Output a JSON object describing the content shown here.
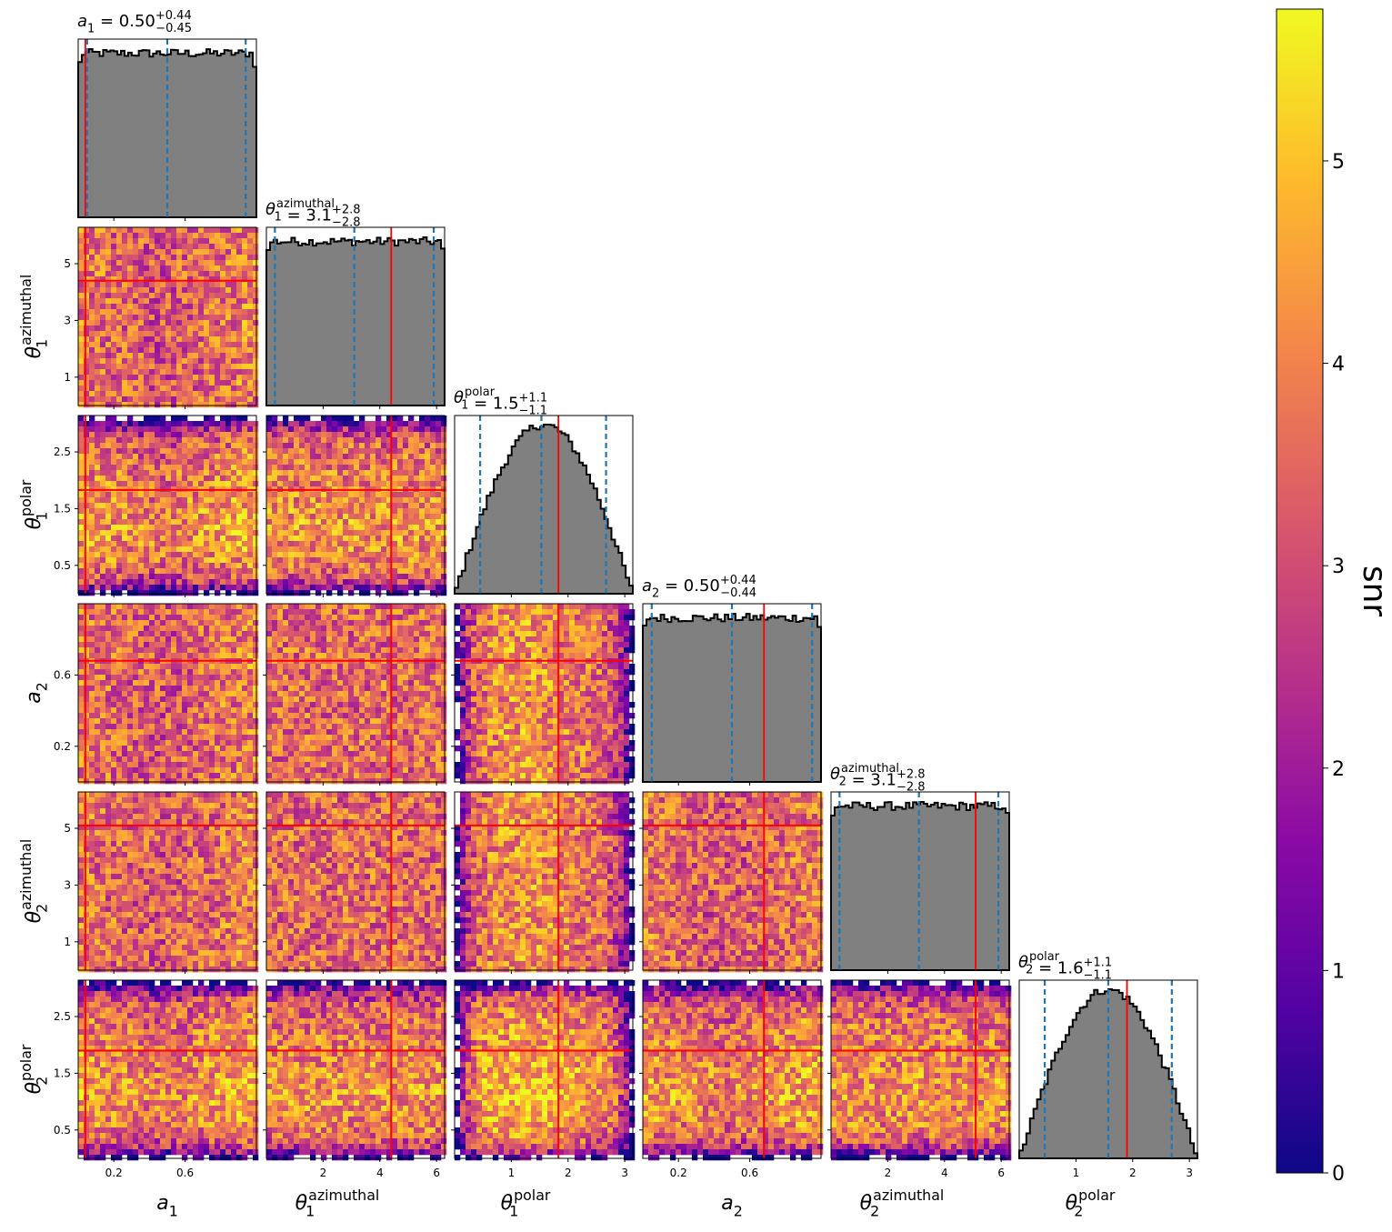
{
  "chart_data": {
    "type": "scatter",
    "subtype": "corner-plot",
    "parameters": [
      {
        "key": "a1",
        "sym": "a",
        "sub": "1",
        "sup": "",
        "range": [
          0.0,
          1.0
        ],
        "ticks": [
          0.2,
          0.6
        ],
        "tick_labels": [
          "0.2",
          "0.6"
        ],
        "truth": 0.04,
        "title": {
          "value": "0.50",
          "plus": "+0.44",
          "minus": "−0.45"
        },
        "quantiles": [
          0.05,
          0.5,
          0.94
        ],
        "hist_shape": "flat"
      },
      {
        "key": "th1az",
        "sym": "θ",
        "sub": "1",
        "sup": "azimuthal",
        "range": [
          0.0,
          6.283
        ],
        "ticks": [
          1,
          3,
          5
        ],
        "tick_labels": [
          "1",
          "3",
          "5"
        ],
        "x_ticks": [
          2,
          4,
          6
        ],
        "x_tick_labels": [
          "2",
          "4",
          "6"
        ],
        "truth": 4.4,
        "title": {
          "value": "3.1",
          "plus": "+2.8",
          "minus": "−2.8"
        },
        "quantiles": [
          0.3,
          3.1,
          5.9
        ],
        "hist_shape": "flat"
      },
      {
        "key": "th1pol",
        "sym": "θ",
        "sub": "1",
        "sup": "polar",
        "range": [
          0.0,
          3.1416
        ],
        "ticks": [
          0.5,
          1.5,
          2.5
        ],
        "tick_labels": [
          "0.5",
          "1.5",
          "2.5"
        ],
        "x_ticks": [
          1,
          2,
          3
        ],
        "x_tick_labels": [
          "1",
          "2",
          "3"
        ],
        "truth": 1.83,
        "title": {
          "value": "1.5",
          "plus": "+1.1",
          "minus": "−1.1"
        },
        "quantiles": [
          0.45,
          1.53,
          2.67
        ],
        "hist_shape": "sine"
      },
      {
        "key": "a2",
        "sym": "a",
        "sub": "2",
        "sup": "",
        "range": [
          0.0,
          1.0
        ],
        "ticks": [
          0.2,
          0.6
        ],
        "tick_labels": [
          "0.2",
          "0.6"
        ],
        "truth": 0.68,
        "title": {
          "value": "0.50",
          "plus": "+0.44",
          "minus": "−0.44"
        },
        "quantiles": [
          0.05,
          0.5,
          0.95
        ],
        "hist_shape": "flat"
      },
      {
        "key": "th2az",
        "sym": "θ",
        "sub": "2",
        "sup": "azimuthal",
        "range": [
          0.0,
          6.283
        ],
        "ticks": [
          1,
          3,
          5
        ],
        "tick_labels": [
          "1",
          "3",
          "5"
        ],
        "x_ticks": [
          2,
          4,
          6
        ],
        "x_tick_labels": [
          "2",
          "4",
          "6"
        ],
        "truth": 5.1,
        "title": {
          "value": "3.1",
          "plus": "+2.8",
          "minus": "−2.8"
        },
        "quantiles": [
          0.3,
          3.1,
          5.9
        ],
        "hist_shape": "flat"
      },
      {
        "key": "th2pol",
        "sym": "θ",
        "sub": "2",
        "sup": "polar",
        "range": [
          0.0,
          3.1416
        ],
        "ticks": [
          0.5,
          1.5,
          2.5
        ],
        "tick_labels": [
          "0.5",
          "1.5",
          "2.5"
        ],
        "x_ticks": [
          1,
          2,
          3
        ],
        "x_tick_labels": [
          "1",
          "2",
          "3"
        ],
        "truth": 1.9,
        "title": {
          "value": "1.6",
          "plus": "+1.1",
          "minus": "−1.1"
        },
        "quantiles": [
          0.45,
          1.57,
          2.69
        ],
        "hist_shape": "sine"
      }
    ],
    "colorbar": {
      "label": "snr",
      "range": [
        0,
        5.75
      ],
      "ticks": [
        0,
        1,
        2,
        3,
        4,
        5
      ],
      "tick_labels": [
        "0",
        "1",
        "2",
        "3",
        "4",
        "5"
      ],
      "colormap": "plasma"
    },
    "colors": {
      "histogram_fill": "#808080",
      "histogram_edge": "#000000",
      "truth_line": "#ff0000",
      "quantile_line": "#1f77b4"
    },
    "grid": false
  }
}
